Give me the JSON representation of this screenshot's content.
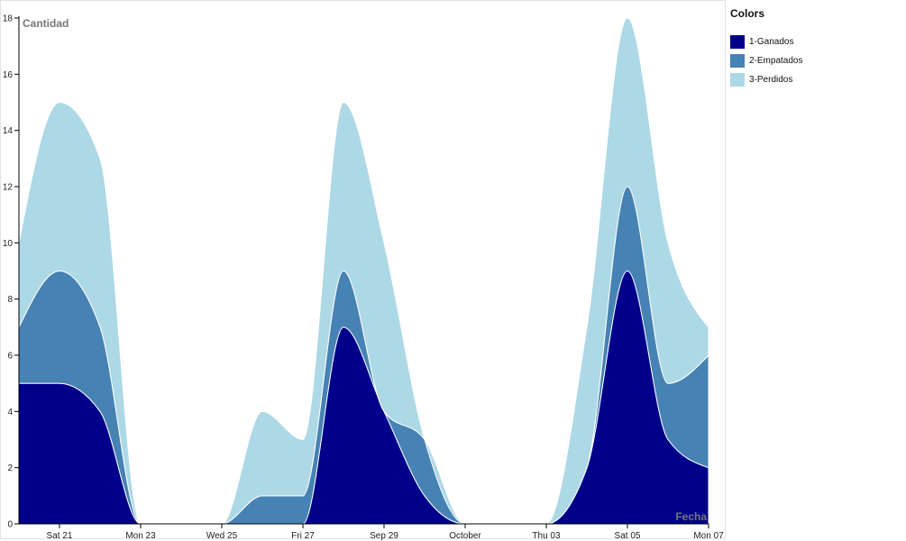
{
  "chart_data": {
    "type": "area",
    "title": "",
    "ylabel": "Cantidad",
    "xlabel": "Fecha",
    "ylim": [
      0,
      18
    ],
    "x_ticks": [
      {
        "label": "Sat 21",
        "value": "2019-09-21"
      },
      {
        "label": "Mon 23",
        "value": "2019-09-23"
      },
      {
        "label": "Wed 25",
        "value": "2019-09-25"
      },
      {
        "label": "Fri 27",
        "value": "2019-09-27"
      },
      {
        "label": "Sep 29",
        "value": "2019-09-29"
      },
      {
        "label": "October",
        "value": "2019-10-01"
      },
      {
        "label": "Thu 03",
        "value": "2019-10-03"
      },
      {
        "label": "Sat 05",
        "value": "2019-10-05"
      },
      {
        "label": "Mon 07",
        "value": "2019-10-07"
      }
    ],
    "y_ticks": [
      "0",
      "2",
      "4",
      "6",
      "8",
      "10",
      "12",
      "14",
      "16",
      "18"
    ],
    "legend_title": "Colors",
    "series": [
      {
        "name": "1-Ganados",
        "color": "#00008b",
        "values": [
          {
            "x": "2019-09-20",
            "y": 5
          },
          {
            "x": "2019-09-21",
            "y": 5
          },
          {
            "x": "2019-09-22",
            "y": 4
          },
          {
            "x": "2019-09-23",
            "y": 0
          },
          {
            "x": "2019-09-24",
            "y": 0
          },
          {
            "x": "2019-09-25",
            "y": 0
          },
          {
            "x": "2019-09-26",
            "y": 0
          },
          {
            "x": "2019-09-27",
            "y": 0
          },
          {
            "x": "2019-09-28",
            "y": 7
          },
          {
            "x": "2019-09-29",
            "y": 4
          },
          {
            "x": "2019-09-30",
            "y": 1
          },
          {
            "x": "2019-10-01",
            "y": 0
          },
          {
            "x": "2019-10-02",
            "y": 0
          },
          {
            "x": "2019-10-03",
            "y": 0
          },
          {
            "x": "2019-10-04",
            "y": 2
          },
          {
            "x": "2019-10-05",
            "y": 9
          },
          {
            "x": "2019-10-06",
            "y": 3
          },
          {
            "x": "2019-10-07",
            "y": 2
          }
        ]
      },
      {
        "name": "2-Empatados",
        "color": "#4682b4",
        "values": [
          {
            "x": "2019-09-20",
            "y": 2
          },
          {
            "x": "2019-09-21",
            "y": 4
          },
          {
            "x": "2019-09-22",
            "y": 3
          },
          {
            "x": "2019-09-23",
            "y": 0
          },
          {
            "x": "2019-09-24",
            "y": 0
          },
          {
            "x": "2019-09-25",
            "y": 0
          },
          {
            "x": "2019-09-26",
            "y": 1
          },
          {
            "x": "2019-09-27",
            "y": 1
          },
          {
            "x": "2019-09-28",
            "y": 2
          },
          {
            "x": "2019-09-29",
            "y": 0
          },
          {
            "x": "2019-09-30",
            "y": 2
          },
          {
            "x": "2019-10-01",
            "y": 0
          },
          {
            "x": "2019-10-02",
            "y": 0
          },
          {
            "x": "2019-10-03",
            "y": 0
          },
          {
            "x": "2019-10-04",
            "y": 0
          },
          {
            "x": "2019-10-05",
            "y": 3
          },
          {
            "x": "2019-10-06",
            "y": 2
          },
          {
            "x": "2019-10-07",
            "y": 4
          }
        ]
      },
      {
        "name": "3-Perdidos",
        "color": "#add8e6",
        "values": [
          {
            "x": "2019-09-20",
            "y": 3
          },
          {
            "x": "2019-09-21",
            "y": 6
          },
          {
            "x": "2019-09-22",
            "y": 6
          },
          {
            "x": "2019-09-23",
            "y": 0
          },
          {
            "x": "2019-09-24",
            "y": 0
          },
          {
            "x": "2019-09-25",
            "y": 0
          },
          {
            "x": "2019-09-26",
            "y": 3
          },
          {
            "x": "2019-09-27",
            "y": 2
          },
          {
            "x": "2019-09-28",
            "y": 6
          },
          {
            "x": "2019-09-29",
            "y": 6
          },
          {
            "x": "2019-09-30",
            "y": 0
          },
          {
            "x": "2019-10-01",
            "y": 0
          },
          {
            "x": "2019-10-02",
            "y": 0
          },
          {
            "x": "2019-10-03",
            "y": 0
          },
          {
            "x": "2019-10-04",
            "y": 5
          },
          {
            "x": "2019-10-05",
            "y": 6
          },
          {
            "x": "2019-10-06",
            "y": 5
          },
          {
            "x": "2019-10-07",
            "y": 1
          }
        ]
      }
    ]
  }
}
